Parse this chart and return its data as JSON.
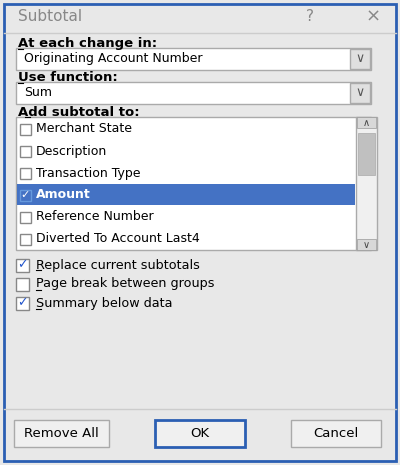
{
  "title": "Subtotal",
  "bg_color": "#e8e8e8",
  "border_color": "#2b5fb3",
  "title_color": "#888888",
  "label1": "At each change in:",
  "dropdown1_value": "Originating Account Number",
  "label2": "Use function:",
  "dropdown2_value": "Sum",
  "label3": "Add subtotal to:",
  "list_items": [
    "Merchant State",
    "Description",
    "Transaction Type",
    "Amount",
    "Reference Number",
    "Diverted To Account Last4"
  ],
  "checked_list": [
    3
  ],
  "selected_list": 3,
  "checkboxes": [
    {
      "label": "Replace current subtotals",
      "checked": true
    },
    {
      "label": "Page break between groups",
      "checked": false
    },
    {
      "label": "Summary below data",
      "checked": true
    }
  ],
  "buttons": [
    "Remove All",
    "OK",
    "Cancel"
  ],
  "highlight_color": "#4472c4",
  "highlight_text_color": "#ffffff",
  "dropdown_bg": "#ffffff",
  "dropdown_border": "#aaaaaa",
  "list_bg": "#ffffff",
  "list_border": "#aaaaaa",
  "button_bg": "#f0f0f0",
  "button_border": "#aaaaaa",
  "ok_border_color": "#2b5fb3",
  "scrollbar_bg": "#f0f0f0"
}
